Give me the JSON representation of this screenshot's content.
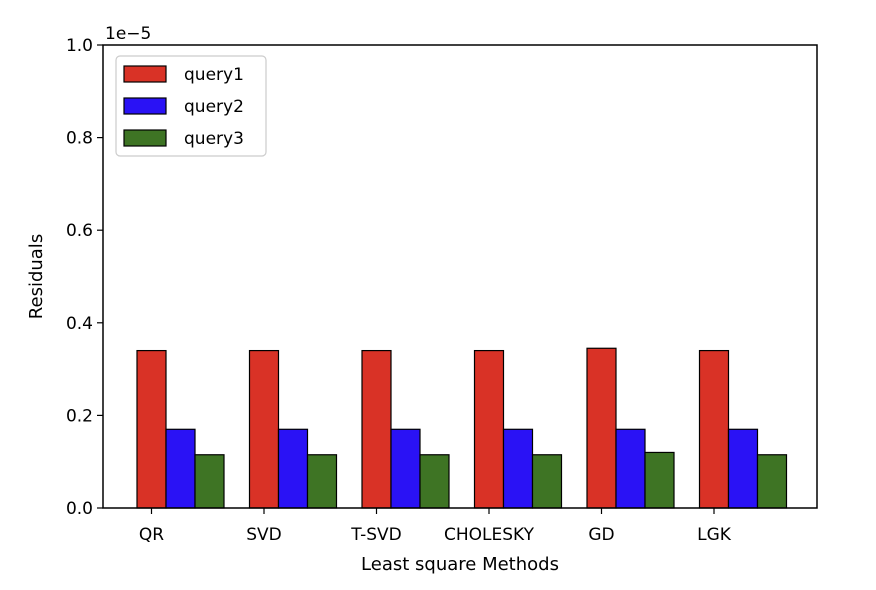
{
  "chart_data": {
    "type": "bar",
    "categories": [
      "QR",
      "SVD",
      "T-SVD",
      "CHOLESKY",
      "GD",
      "LGK"
    ],
    "series": [
      {
        "name": "query1",
        "color": "#d93226",
        "values": [
          0.34,
          0.34,
          0.34,
          0.34,
          0.345,
          0.34
        ]
      },
      {
        "name": "query2",
        "color": "#2a12f5",
        "values": [
          0.17,
          0.17,
          0.17,
          0.17,
          0.17,
          0.17
        ]
      },
      {
        "name": "query3",
        "color": "#3e7424",
        "values": [
          0.115,
          0.115,
          0.115,
          0.115,
          0.12,
          0.115
        ]
      }
    ],
    "xlabel": "Least square Methods",
    "ylabel": "Residuals",
    "ylim": [
      0,
      1.0
    ],
    "yticks": [
      "0.0",
      "0.2",
      "0.4",
      "0.6",
      "0.8",
      "1.0"
    ],
    "y_offset_label": "1e−5",
    "grid": false,
    "legend_position": "top-left"
  }
}
